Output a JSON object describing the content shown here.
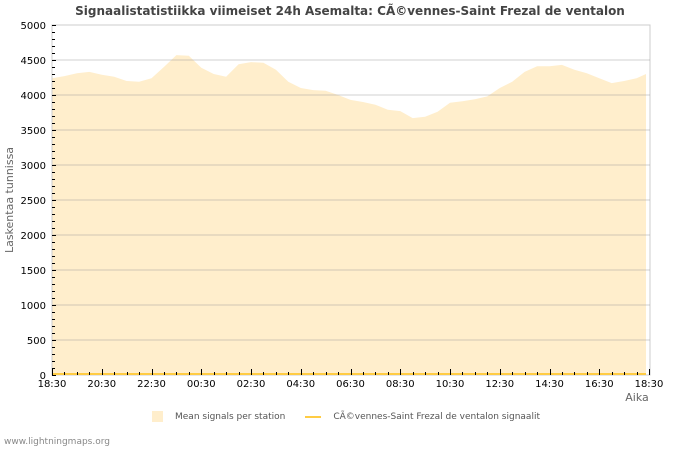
{
  "chart_data": {
    "type": "area",
    "title": "Signaalistatistiikka viimeiset 24h Asemalta: CÃ©vennes-Saint Frezal de ventalon",
    "xlabel": "Aika",
    "ylabel": "Laskentaa tunnissa",
    "ylim": [
      0,
      5000
    ],
    "yticks": [
      0,
      500,
      1000,
      1500,
      2000,
      2500,
      3000,
      3500,
      4000,
      4500,
      5000
    ],
    "xticks": [
      "18:30",
      "20:30",
      "22:30",
      "00:30",
      "02:30",
      "04:30",
      "06:30",
      "08:30",
      "10:30",
      "12:30",
      "14:30",
      "16:30",
      "18:30"
    ],
    "grid": true,
    "legend_position": "bottom",
    "x": [
      "18:30",
      "19:00",
      "19:30",
      "20:00",
      "20:30",
      "21:00",
      "21:30",
      "22:00",
      "22:30",
      "23:00",
      "23:30",
      "00:00",
      "00:30",
      "01:00",
      "01:30",
      "02:00",
      "02:30",
      "03:00",
      "03:30",
      "04:00",
      "04:30",
      "05:00",
      "05:30",
      "06:00",
      "06:30",
      "07:00",
      "07:30",
      "08:00",
      "08:30",
      "09:00",
      "09:30",
      "10:00",
      "10:30",
      "11:00",
      "11:30",
      "12:00",
      "12:30",
      "13:00",
      "13:30",
      "14:00",
      "14:30",
      "15:00",
      "15:30",
      "16:00",
      "16:30",
      "17:00",
      "17:30",
      "18:00",
      "18:15"
    ],
    "series": [
      {
        "name": "Mean signals per station",
        "color": "#ffeecc",
        "values": [
          4240,
          4270,
          4310,
          4330,
          4290,
          4260,
          4200,
          4190,
          4240,
          4400,
          4570,
          4560,
          4390,
          4300,
          4260,
          4440,
          4470,
          4460,
          4360,
          4190,
          4100,
          4070,
          4060,
          4000,
          3930,
          3900,
          3860,
          3790,
          3770,
          3670,
          3690,
          3760,
          3890,
          3910,
          3940,
          3980,
          4100,
          4190,
          4330,
          4410,
          4410,
          4430,
          4360,
          4310,
          4240,
          4170,
          4200,
          4240,
          4300
        ]
      },
      {
        "name": "CÃ©vennes-Saint Frezal de ventalon signaalit",
        "color": "#ffcc44",
        "values": [
          0,
          0,
          0,
          0,
          0,
          0,
          0,
          0,
          0,
          0,
          0,
          0,
          0,
          0,
          0,
          0,
          0,
          0,
          0,
          0,
          0,
          0,
          0,
          0,
          0,
          0,
          0,
          0,
          0,
          0,
          0,
          0,
          0,
          0,
          0,
          0,
          0,
          0,
          0,
          0,
          0,
          0,
          0,
          0,
          0,
          0,
          0,
          0,
          0
        ]
      }
    ]
  },
  "legend": {
    "mean_label": "Mean signals per station",
    "station_label": "CÃ©vennes-Saint Frezal de ventalon signaalit"
  },
  "footer": "www.lightningmaps.org"
}
